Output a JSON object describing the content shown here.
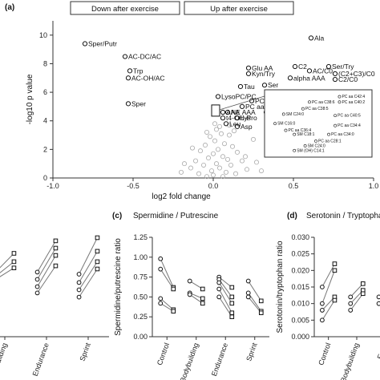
{
  "panel_a": {
    "label": "(a)",
    "header_left": "Down after exercise",
    "header_right": "Up after exercise"
  },
  "panel_c": {
    "label": "(c)",
    "title": "Spermidine / Putrescine"
  },
  "panel_d": {
    "label": "(d)",
    "title": "Serotonin / Tryptopha"
  },
  "chart_data": [
    {
      "type": "scatter",
      "xlabel": "log2 fold change",
      "ylabel": "-log10 p value",
      "xlim": [
        -1.0,
        1.0
      ],
      "ylim": [
        0,
        11
      ],
      "x_ticks": [
        "-1.0",
        "-0.5",
        "0.0",
        "0.5",
        "1.0"
      ],
      "y_ticks": [
        "0",
        "2",
        "4",
        "6",
        "8",
        "10"
      ],
      "series": [
        {
          "points": [
            {
              "x": -0.8,
              "y": 9.4,
              "label": "Sper/Putr"
            },
            {
              "x": -0.55,
              "y": 8.5,
              "label": "AC-DC/AC"
            },
            {
              "x": -0.52,
              "y": 7.5,
              "label": "Trp"
            },
            {
              "x": -0.53,
              "y": 7.0,
              "label": "AC-OH/AC"
            },
            {
              "x": -0.53,
              "y": 5.2,
              "label": "Sper"
            },
            {
              "x": 0.61,
              "y": 9.8,
              "label": "Ala"
            },
            {
              "x": 0.72,
              "y": 7.8,
              "label": "Ser/Try"
            },
            {
              "x": 0.51,
              "y": 7.8,
              "label": "C2"
            },
            {
              "x": 0.22,
              "y": 7.7,
              "label": "Glu AA"
            },
            {
              "x": 0.22,
              "y": 7.3,
              "label": "Kyn/Try"
            },
            {
              "x": 0.6,
              "y": 7.5,
              "label": "AC/C0"
            },
            {
              "x": 0.76,
              "y": 7.3,
              "label": "(C2+C3)/C0"
            },
            {
              "x": 0.48,
              "y": 7.0,
              "label": "alpha AAA"
            },
            {
              "x": 0.76,
              "y": 6.9,
              "label": "C2/C0"
            },
            {
              "x": 0.17,
              "y": 6.4,
              "label": "Tau"
            },
            {
              "x": 0.32,
              "y": 6.5,
              "label": "Ser"
            },
            {
              "x": 0.03,
              "y": 5.7,
              "label": "LysoPC/PC"
            },
            {
              "x": 0.24,
              "y": 5.4,
              "label": "PC aa C40:2"
            },
            {
              "x": 0.18,
              "y": 5.0,
              "label": "PC aa C40:4"
            },
            {
              "x": 0.39,
              "y": 5.0,
              "label": "C3"
            },
            {
              "x": 0.06,
              "y": 4.6,
              "label": "AAA"
            },
            {
              "x": 0.09,
              "y": 4.6,
              "label": "NE AAA"
            },
            {
              "x": 0.33,
              "y": 4.6,
              "label": "H1"
            },
            {
              "x": 0.15,
              "y": 4.2,
              "label": "Lys"
            },
            {
              "x": 0.06,
              "y": 4.2,
              "label": "t4-OH-Pro"
            },
            {
              "x": 0.08,
              "y": 3.8,
              "label": "Leu"
            },
            {
              "x": 0.15,
              "y": 3.6,
              "label": "Asp"
            }
          ],
          "other_points": [
            {
              "x": 0.02,
              "y": 3.4
            },
            {
              "x": 0.05,
              "y": 3.1
            },
            {
              "x": -0.02,
              "y": 2.9
            },
            {
              "x": 0.1,
              "y": 3.0
            },
            {
              "x": 0.01,
              "y": 2.6
            },
            {
              "x": 0.07,
              "y": 2.4
            },
            {
              "x": -0.05,
              "y": 2.3
            },
            {
              "x": 0.12,
              "y": 2.2
            },
            {
              "x": 0.03,
              "y": 2.0
            },
            {
              "x": -0.08,
              "y": 1.9
            },
            {
              "x": 0.15,
              "y": 1.8
            },
            {
              "x": 0.0,
              "y": 1.7
            },
            {
              "x": 0.06,
              "y": 1.5
            },
            {
              "x": -0.03,
              "y": 1.4
            },
            {
              "x": 0.09,
              "y": 1.3
            },
            {
              "x": -0.11,
              "y": 1.2
            },
            {
              "x": 0.18,
              "y": 1.2
            },
            {
              "x": 0.02,
              "y": 1.0
            },
            {
              "x": -0.06,
              "y": 0.9
            },
            {
              "x": 0.11,
              "y": 0.9
            },
            {
              "x": 0.04,
              "y": 0.7
            },
            {
              "x": -0.14,
              "y": 0.7
            },
            {
              "x": 0.21,
              "y": 0.6
            },
            {
              "x": -0.01,
              "y": 0.5
            },
            {
              "x": 0.08,
              "y": 0.4
            },
            {
              "x": -0.09,
              "y": 0.3
            },
            {
              "x": 0.14,
              "y": 0.3
            },
            {
              "x": 0.0,
              "y": 0.2
            },
            {
              "x": -0.04,
              "y": 0.1
            },
            {
              "x": 0.06,
              "y": 0.1
            },
            {
              "x": 0.25,
              "y": 2.7
            },
            {
              "x": -0.13,
              "y": 2.1
            },
            {
              "x": 0.2,
              "y": 1.5
            },
            {
              "x": -0.18,
              "y": 1.0
            },
            {
              "x": 0.27,
              "y": 1.1
            },
            {
              "x": -0.2,
              "y": 0.4
            },
            {
              "x": 0.3,
              "y": 0.5
            },
            {
              "x": 0.13,
              "y": 3.3
            },
            {
              "x": -0.04,
              "y": 3.2
            },
            {
              "x": 0.04,
              "y": 3.6
            },
            {
              "x": 0.1,
              "y": 3.7
            },
            {
              "x": 0.01,
              "y": 3.8
            }
          ]
        }
      ],
      "inset_labels": [
        "PC aa C42:4",
        "PC aa C40:2",
        "PC aa C38:6",
        "PC aa C38:5",
        "SM C24:0",
        "PC aa C40:5",
        "SM C16:0",
        "PC aa C34:4",
        "PC aa C36:4",
        "PC aa C34:0",
        "SM C18:1",
        "PC aa C28:1",
        "SM C24:0",
        "SM (OH) C14:1"
      ]
    },
    {
      "type": "line",
      "title": "Spermidine / Putrescine",
      "ylabel": "Spermidine/putrescine ratio",
      "ylim": [
        0,
        1.25
      ],
      "y_ticks": [
        "0.00",
        "0.25",
        "0.50",
        "0.75",
        "1.00",
        "1.25"
      ],
      "categories": [
        "Control",
        "Bodybuilding",
        "Endurance",
        "Sprint"
      ],
      "pairs": [
        {
          "group": "Control",
          "pre": [
            0.98,
            0.85,
            0.48,
            0.42
          ],
          "post": [
            0.62,
            0.6,
            0.34,
            0.32
          ]
        },
        {
          "group": "Bodybuilding",
          "pre": [
            0.7,
            0.55,
            0.53
          ],
          "post": [
            0.6,
            0.48,
            0.42
          ]
        },
        {
          "group": "Endurance",
          "pre": [
            0.75,
            0.72,
            0.68,
            0.6,
            0.5
          ],
          "post": [
            0.62,
            0.5,
            0.42,
            0.3,
            0.25
          ]
        },
        {
          "group": "Sprint",
          "pre": [
            0.7,
            0.55,
            0.5
          ],
          "post": [
            0.45,
            0.32,
            0.3
          ]
        }
      ]
    },
    {
      "type": "line",
      "title": "Serotonin / Tryptopha",
      "ylabel": "Serotonin/tryptophan ratio",
      "ylim": [
        0,
        0.03
      ],
      "y_ticks": [
        "0.000",
        "0.005",
        "0.010",
        "0.015",
        "0.020",
        "0.025",
        "0.030"
      ],
      "categories": [
        "Control",
        "Bodybuilding",
        "Endu"
      ],
      "pairs": [
        {
          "group": "Control",
          "pre": [
            0.015,
            0.01,
            0.008,
            0.005
          ],
          "post": [
            0.022,
            0.02,
            0.012,
            0.011
          ]
        },
        {
          "group": "Bodybuilding",
          "pre": [
            0.012,
            0.01,
            0.008
          ],
          "post": [
            0.016,
            0.014,
            0.013
          ]
        },
        {
          "group": "Endu",
          "pre": [
            0.012,
            0.01
          ],
          "post": [
            0.014,
            0.013
          ]
        }
      ]
    },
    {
      "type": "line",
      "categories": [
        "bodybuilding",
        "Endurance",
        "Sprint"
      ],
      "pairs": [
        {
          "group": "bodybuilding",
          "pre": [
            0.62,
            0.58,
            0.55
          ],
          "post": [
            0.8,
            0.72,
            0.66
          ]
        },
        {
          "group": "Endurance",
          "pre": [
            0.62,
            0.55,
            0.48,
            0.42
          ],
          "post": [
            0.92,
            0.85,
            0.78,
            0.68
          ]
        },
        {
          "group": "Sprint",
          "pre": [
            0.6,
            0.52,
            0.45,
            0.38
          ],
          "post": [
            0.95,
            0.82,
            0.72,
            0.65
          ]
        }
      ]
    }
  ]
}
